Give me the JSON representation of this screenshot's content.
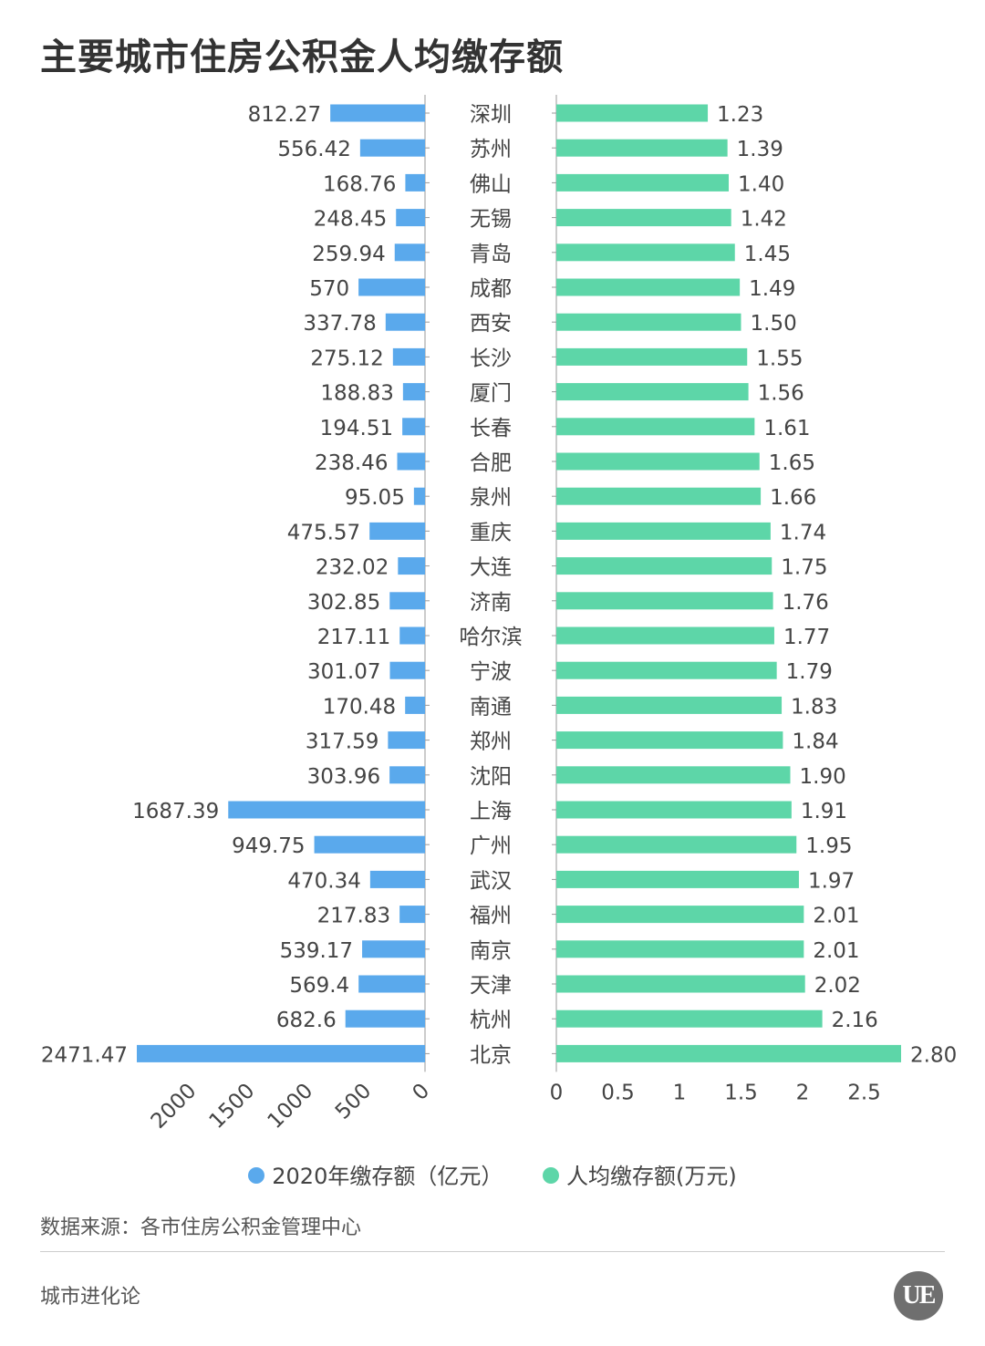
{
  "header": {
    "title": "主要城市住房公积金人均缴存额"
  },
  "chart_data": {
    "type": "bar",
    "title": "主要城市住房公积金人均缴存额",
    "categories": [
      "深圳",
      "苏州",
      "佛山",
      "无锡",
      "青岛",
      "成都",
      "西安",
      "长沙",
      "厦门",
      "长春",
      "合肥",
      "泉州",
      "重庆",
      "大连",
      "济南",
      "哈尔滨",
      "宁波",
      "南通",
      "郑州",
      "沈阳",
      "上海",
      "广州",
      "武汉",
      "福州",
      "南京",
      "天津",
      "杭州",
      "北京"
    ],
    "series": [
      {
        "name": "2020年缴存额（亿元）",
        "color": "#5aa9ec",
        "values": [
          812.27,
          556.42,
          168.76,
          248.45,
          259.94,
          570,
          337.78,
          275.12,
          188.83,
          194.51,
          238.46,
          95.05,
          475.57,
          232.02,
          302.85,
          217.11,
          301.07,
          170.48,
          317.59,
          303.96,
          1687.39,
          949.75,
          470.34,
          217.83,
          539.17,
          569.4,
          682.6,
          2471.47
        ],
        "labels": [
          "812.27",
          "556.42",
          "168.76",
          "248.45",
          "259.94",
          "570",
          "337.78",
          "275.12",
          "188.83",
          "194.51",
          "238.46",
          "95.05",
          "475.57",
          "232.02",
          "302.85",
          "217.11",
          "301.07",
          "170.48",
          "317.59",
          "303.96",
          "1687.39",
          "949.75",
          "470.34",
          "217.83",
          "539.17",
          "569.4",
          "682.6",
          "2471.47"
        ],
        "axis_ticks": [
          "2000",
          "1500",
          "1000",
          "500",
          "0"
        ],
        "tick_values": [
          2000,
          1500,
          1000,
          500,
          0
        ],
        "xlim": [
          0,
          2471.47
        ]
      },
      {
        "name": "人均缴存额(万元)",
        "color": "#5dd6a8",
        "values": [
          1.23,
          1.39,
          1.4,
          1.42,
          1.45,
          1.49,
          1.5,
          1.55,
          1.56,
          1.61,
          1.65,
          1.66,
          1.74,
          1.75,
          1.76,
          1.77,
          1.79,
          1.83,
          1.84,
          1.9,
          1.91,
          1.95,
          1.97,
          2.01,
          2.01,
          2.02,
          2.16,
          2.8
        ],
        "labels": [
          "1.23",
          "1.39",
          "1.40",
          "1.42",
          "1.45",
          "1.49",
          "1.50",
          "1.55",
          "1.56",
          "1.61",
          "1.65",
          "1.66",
          "1.74",
          "1.75",
          "1.76",
          "1.77",
          "1.79",
          "1.83",
          "1.84",
          "1.90",
          "1.91",
          "1.95",
          "1.97",
          "2.01",
          "2.01",
          "2.02",
          "2.16",
          "2.80"
        ],
        "axis_ticks": [
          "0",
          "0.5",
          "1",
          "1.5",
          "2",
          "2.5"
        ],
        "tick_values": [
          0,
          0.5,
          1,
          1.5,
          2,
          2.5
        ],
        "xlim": [
          0,
          2.8
        ]
      }
    ],
    "legend_position": "bottom",
    "grid": false
  },
  "footer": {
    "source": "数据来源：各市住房公积金管理中心",
    "brand": "城市进化论",
    "logo_text": "UE"
  }
}
